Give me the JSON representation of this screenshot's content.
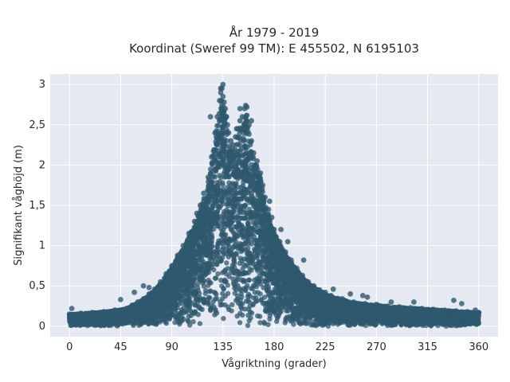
{
  "chart_data": {
    "type": "scatter",
    "title": "År 1979 - 2019",
    "subtitle": "Koordinat (Sweref 99 TM): E 455502, N 6195103",
    "xlabel": "Vågriktning (grader)",
    "ylabel": "Signifikant våghöjd (m)",
    "xlim": [
      -17,
      377
    ],
    "ylim": [
      -0.13,
      3.13
    ],
    "xticks": [
      0,
      45,
      90,
      135,
      180,
      225,
      270,
      315,
      360
    ],
    "xtick_labels": [
      "0",
      "45",
      "90",
      "135",
      "180",
      "225",
      "270",
      "315",
      "360"
    ],
    "yticks": [
      0,
      0.5,
      1,
      1.5,
      2,
      2.5,
      3
    ],
    "ytick_labels": [
      "0",
      "0,5",
      "1",
      "1,5",
      "2",
      "2,5",
      "3"
    ],
    "grid": true,
    "marker_color": "#2f586e",
    "plot_background": "#e5e9f2",
    "series": [
      {
        "x": [
          0,
          10,
          20,
          30,
          40,
          50,
          55,
          60,
          65,
          70,
          75,
          80,
          85,
          90,
          95,
          100,
          105,
          110,
          115,
          118,
          122,
          125,
          128,
          130,
          132,
          133,
          134,
          135,
          136,
          137,
          138,
          139,
          140,
          142,
          144,
          146,
          148,
          150,
          152,
          154,
          156,
          158,
          160,
          162,
          165,
          168,
          170,
          172,
          175,
          178,
          180,
          185,
          190,
          195,
          200,
          205,
          210,
          215,
          220,
          225,
          230,
          240,
          250,
          260,
          270,
          280,
          290,
          300,
          310,
          320,
          330,
          340,
          350,
          360,
          135,
          138,
          133,
          150,
          155,
          160,
          45,
          65,
          70,
          93,
          258,
          262,
          283,
          303,
          338,
          57,
          112,
          124,
          141,
          147,
          153,
          163,
          168,
          176,
          186,
          192,
          206,
          232,
          247,
          2,
          345,
          357
        ],
        "y": [
          0.15,
          0.16,
          0.17,
          0.18,
          0.2,
          0.22,
          0.26,
          0.3,
          0.34,
          0.4,
          0.46,
          0.55,
          0.65,
          0.75,
          0.88,
          1.0,
          1.15,
          1.3,
          1.5,
          1.65,
          1.85,
          2.1,
          2.4,
          2.6,
          2.8,
          2.9,
          2.95,
          2.85,
          2.78,
          2.7,
          2.6,
          2.5,
          2.4,
          2.3,
          2.25,
          2.35,
          2.45,
          2.55,
          2.6,
          2.7,
          2.72,
          2.5,
          2.3,
          2.15,
          2.05,
          1.9,
          1.75,
          1.6,
          1.45,
          1.35,
          1.2,
          1.05,
          0.92,
          0.82,
          0.72,
          0.63,
          0.55,
          0.5,
          0.45,
          0.42,
          0.38,
          0.34,
          0.3,
          0.28,
          0.27,
          0.25,
          0.24,
          0.23,
          0.22,
          0.21,
          0.2,
          0.19,
          0.18,
          0.17,
          3.0,
          2.6,
          2.95,
          2.7,
          2.74,
          2.55,
          0.33,
          0.5,
          0.48,
          0.55,
          0.38,
          0.36,
          0.3,
          0.3,
          0.32,
          0.42,
          1.4,
          2.6,
          2.1,
          2.45,
          2.3,
          2.0,
          1.8,
          1.55,
          1.2,
          1.05,
          0.82,
          0.46,
          0.4,
          0.22,
          0.28,
          0.2
        ]
      }
    ]
  }
}
